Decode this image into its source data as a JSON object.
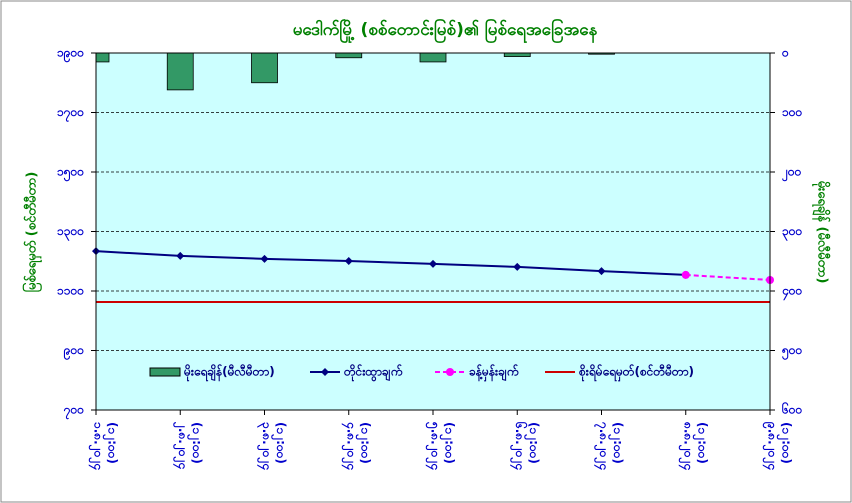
{
  "chart_data": {
    "type": "combo",
    "title": "မဒေါက်မြို့ (စစ်တောင်းမြစ်)၏ မြစ်ရေအခြေအနေ",
    "y_label": "မြစ်ရေမှတ် (စင်တီမီတာ)",
    "y2_label": "မိုးရေချိန် (မီလီမီတာ)",
    "categories": [
      [
        "၁.၈.၂၀၂၄",
        "(၁၂:၀၀)"
      ],
      [
        "၂.၈.၂၀၂၄",
        "(၁၂:၀၀)"
      ],
      [
        "၃.၈.၂၀၂၄",
        "(၁၂:၀၀)"
      ],
      [
        "၄.၈.၂၀၂၄",
        "(၁၂:၀၀)"
      ],
      [
        "၅.၈.၂၀၂၄",
        "(၁၂:၀၀)"
      ],
      [
        "၆.၈.၂၀၂၄",
        "(၁၂:၀၀)"
      ],
      [
        "၇.၈.၂၀၂၄",
        "(၁၂:၀၀)"
      ],
      [
        "၈.၈.၂၀၂၄",
        "(၁၂:၀၀)"
      ],
      [
        "၉.၈.၂၀၂၄",
        "(၁၂:၀၀)"
      ]
    ],
    "series": [
      {
        "name": "မိုးရေချိန်(မီလီမီတာ)",
        "kind": "bar",
        "axis": "y2",
        "color": "#339966",
        "values": [
          15,
          62,
          50,
          8,
          15,
          6,
          2,
          null,
          null
        ]
      },
      {
        "name": "တိုင်းထွာချက်",
        "kind": "line",
        "color": "#000080",
        "marker": "diamond",
        "values": [
          1234,
          1218,
          1208,
          1201,
          1191,
          1181,
          1167,
          1154,
          null
        ]
      },
      {
        "name": "ခန့်မှန်းချက်",
        "kind": "line",
        "color": "#ff00ff",
        "marker": "circle",
        "dashed": true,
        "values": [
          null,
          null,
          null,
          null,
          null,
          null,
          null,
          1154,
          1137
        ]
      },
      {
        "name": "စိုးရိမ်ရေမှတ်(စင်တီမီတာ)",
        "kind": "line",
        "color": "#cc0000",
        "values": [
          1063,
          1063,
          1063,
          1063,
          1063,
          1063,
          1063,
          1063,
          1063
        ]
      }
    ],
    "ylim": [
      700,
      1900
    ],
    "yticks": [
      {
        "value": 700,
        "label": "၇၀၀"
      },
      {
        "value": 900,
        "label": "၉၀၀"
      },
      {
        "value": 1100,
        "label": "၁၁၀၀"
      },
      {
        "value": 1300,
        "label": "၁၃၀၀"
      },
      {
        "value": 1500,
        "label": "၁၅၀၀"
      },
      {
        "value": 1700,
        "label": "၁၇၀၀"
      },
      {
        "value": 1900,
        "label": "၁၉၀၀"
      }
    ],
    "y2lim": [
      600,
      0
    ],
    "y2ticks": [
      {
        "value": 0,
        "label": "၀"
      },
      {
        "value": 100,
        "label": "၁၀၀"
      },
      {
        "value": 200,
        "label": "၂၀၀"
      },
      {
        "value": 300,
        "label": "၃၀၀"
      },
      {
        "value": 400,
        "label": "၄၀၀"
      },
      {
        "value": 500,
        "label": "၅၀၀"
      },
      {
        "value": 600,
        "label": "၆၀၀"
      }
    ],
    "grid": true
  }
}
